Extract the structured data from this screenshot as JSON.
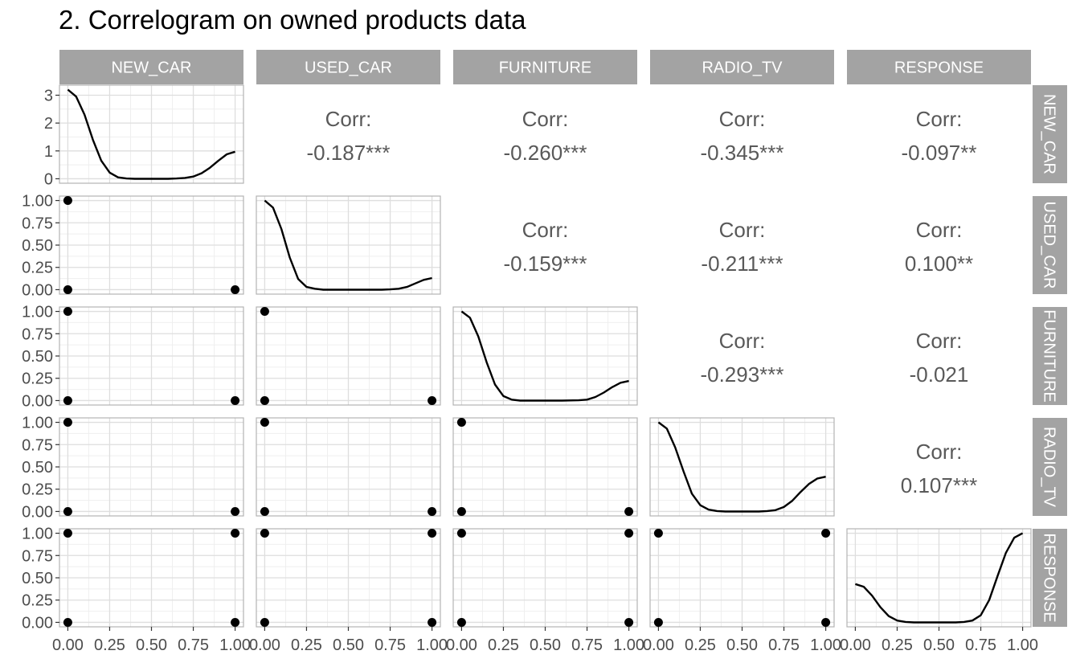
{
  "title": "2. Correlogram on owned products data",
  "chart_data": {
    "type": "correlogram",
    "title": "2. Correlogram on owned products data",
    "variables": [
      "NEW_CAR",
      "USED_CAR",
      "FURNITURE",
      "RADIO_TV",
      "RESPONSE"
    ],
    "corr_label": "Corr:",
    "correlations": [
      {
        "row": "NEW_CAR",
        "col": "USED_CAR",
        "text": "-0.187***"
      },
      {
        "row": "NEW_CAR",
        "col": "FURNITURE",
        "text": "-0.260***"
      },
      {
        "row": "NEW_CAR",
        "col": "RADIO_TV",
        "text": "-0.345***"
      },
      {
        "row": "NEW_CAR",
        "col": "RESPONSE",
        "text": "-0.097**"
      },
      {
        "row": "USED_CAR",
        "col": "FURNITURE",
        "text": "-0.159***"
      },
      {
        "row": "USED_CAR",
        "col": "RADIO_TV",
        "text": "-0.211***"
      },
      {
        "row": "USED_CAR",
        "col": "RESPONSE",
        "text": "0.100**"
      },
      {
        "row": "FURNITURE",
        "col": "RADIO_TV",
        "text": "-0.293***"
      },
      {
        "row": "FURNITURE",
        "col": "RESPONSE",
        "text": "-0.021"
      },
      {
        "row": "RADIO_TV",
        "col": "RESPONSE",
        "text": "0.107***"
      }
    ],
    "density": [
      {
        "variable": "NEW_CAR",
        "x": [
          0,
          0.05,
          0.1,
          0.15,
          0.2,
          0.25,
          0.3,
          0.35,
          0.4,
          0.5,
          0.6,
          0.65,
          0.7,
          0.75,
          0.8,
          0.85,
          0.9,
          0.95,
          1.0
        ],
        "y": [
          3.2,
          2.95,
          2.3,
          1.4,
          0.65,
          0.22,
          0.05,
          0.01,
          0,
          0,
          0,
          0.01,
          0.03,
          0.08,
          0.2,
          0.4,
          0.65,
          0.88,
          0.97
        ]
      },
      {
        "variable": "USED_CAR",
        "x": [
          0,
          0.05,
          0.1,
          0.15,
          0.2,
          0.25,
          0.3,
          0.35,
          0.4,
          0.5,
          0.6,
          0.7,
          0.75,
          0.8,
          0.85,
          0.9,
          0.95,
          1.0
        ],
        "y": [
          1.0,
          0.92,
          0.68,
          0.36,
          0.12,
          0.03,
          0.01,
          0,
          0,
          0,
          0,
          0,
          0.003,
          0.01,
          0.03,
          0.07,
          0.11,
          0.13
        ]
      },
      {
        "variable": "FURNITURE",
        "x": [
          0,
          0.05,
          0.1,
          0.15,
          0.2,
          0.25,
          0.3,
          0.35,
          0.4,
          0.5,
          0.6,
          0.7,
          0.75,
          0.8,
          0.85,
          0.9,
          0.95,
          1.0
        ],
        "y": [
          1.0,
          0.93,
          0.72,
          0.43,
          0.18,
          0.05,
          0.01,
          0,
          0,
          0,
          0,
          0.003,
          0.01,
          0.04,
          0.09,
          0.15,
          0.2,
          0.22
        ]
      },
      {
        "variable": "RADIO_TV",
        "x": [
          0,
          0.05,
          0.1,
          0.15,
          0.2,
          0.25,
          0.3,
          0.35,
          0.4,
          0.5,
          0.6,
          0.65,
          0.7,
          0.75,
          0.8,
          0.85,
          0.9,
          0.95,
          1.0
        ],
        "y": [
          1.0,
          0.93,
          0.72,
          0.45,
          0.2,
          0.07,
          0.02,
          0.005,
          0,
          0,
          0,
          0.005,
          0.015,
          0.05,
          0.12,
          0.22,
          0.31,
          0.37,
          0.39
        ]
      },
      {
        "variable": "RESPONSE",
        "x": [
          0,
          0.05,
          0.1,
          0.15,
          0.2,
          0.25,
          0.3,
          0.35,
          0.4,
          0.5,
          0.6,
          0.65,
          0.7,
          0.75,
          0.8,
          0.85,
          0.9,
          0.95,
          1.0
        ],
        "y": [
          0.43,
          0.4,
          0.3,
          0.17,
          0.07,
          0.02,
          0.005,
          0,
          0,
          0,
          0,
          0.005,
          0.02,
          0.08,
          0.25,
          0.52,
          0.78,
          0.95,
          1.0
        ]
      }
    ],
    "scatter_points": [
      {
        "row": "USED_CAR",
        "col": "NEW_CAR",
        "points": [
          [
            0,
            1
          ],
          [
            0,
            0
          ],
          [
            1,
            0
          ]
        ]
      },
      {
        "row": "FURNITURE",
        "col": "NEW_CAR",
        "points": [
          [
            0,
            1
          ],
          [
            0,
            0
          ],
          [
            1,
            0
          ]
        ]
      },
      {
        "row": "FURNITURE",
        "col": "USED_CAR",
        "points": [
          [
            0,
            1
          ],
          [
            0,
            0
          ],
          [
            1,
            0
          ]
        ]
      },
      {
        "row": "RADIO_TV",
        "col": "NEW_CAR",
        "points": [
          [
            0,
            1
          ],
          [
            0,
            0
          ],
          [
            1,
            0
          ]
        ]
      },
      {
        "row": "RADIO_TV",
        "col": "USED_CAR",
        "points": [
          [
            0,
            1
          ],
          [
            0,
            0
          ],
          [
            1,
            0
          ]
        ]
      },
      {
        "row": "RADIO_TV",
        "col": "FURNITURE",
        "points": [
          [
            0,
            1
          ],
          [
            0,
            0
          ],
          [
            1,
            0
          ]
        ]
      },
      {
        "row": "RESPONSE",
        "col": "NEW_CAR",
        "points": [
          [
            0,
            1
          ],
          [
            1,
            1
          ],
          [
            0,
            0
          ],
          [
            1,
            0
          ]
        ]
      },
      {
        "row": "RESPONSE",
        "col": "USED_CAR",
        "points": [
          [
            0,
            1
          ],
          [
            1,
            1
          ],
          [
            0,
            0
          ],
          [
            1,
            0
          ]
        ]
      },
      {
        "row": "RESPONSE",
        "col": "FURNITURE",
        "points": [
          [
            0,
            1
          ],
          [
            1,
            1
          ],
          [
            0,
            0
          ],
          [
            1,
            0
          ]
        ]
      },
      {
        "row": "RESPONSE",
        "col": "RADIO_TV",
        "points": [
          [
            0,
            1
          ],
          [
            1,
            1
          ],
          [
            0,
            0
          ],
          [
            1,
            0
          ]
        ]
      }
    ],
    "x_ticks": [
      "0.00",
      "0.25",
      "0.50",
      "0.75",
      "1.00"
    ],
    "y_ticks_first_row": [
      "0",
      "1",
      "2",
      "3"
    ],
    "y_ticks": [
      "0.00",
      "0.25",
      "0.50",
      "0.75",
      "1.00"
    ],
    "xlim": [
      -0.05,
      1.05
    ],
    "ylim_first_row": [
      -0.16,
      3.36
    ],
    "ylim": [
      -0.05,
      1.05
    ],
    "grid": true,
    "colors": {
      "strip_fill": "#a3a3a3",
      "strip_text": "#ffffff",
      "panel_border": "#b3b3b3",
      "grid_major": "#dedede",
      "grid_minor": "#efefef",
      "line": "#000000",
      "point": "#000000",
      "corr_text": "#595959",
      "tick_text": "#4d4d4d"
    }
  }
}
